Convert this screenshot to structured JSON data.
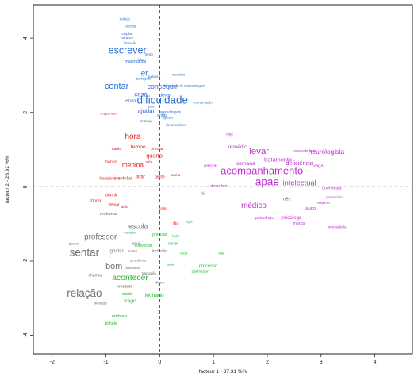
{
  "chart_data": {
    "type": "scatter",
    "title": "",
    "xlabel": "facteur 1 - 37.31 %%",
    "ylabel": "facteur 2 - 26.92 %%",
    "xlim": [
      -2.35,
      4.7
    ],
    "ylim": [
      -4.5,
      4.9
    ],
    "x_ticks": [
      -2,
      -1,
      0,
      1,
      2,
      3,
      4
    ],
    "y_ticks": [
      -4,
      -2,
      0,
      2,
      4
    ],
    "grid": false,
    "legend": "none",
    "reference_lines": {
      "x": 0,
      "y": 0,
      "style": "dashed"
    },
    "series": [
      {
        "color": "#2a6fd0",
        "points": [
          {
            "x": -0.6,
            "y": 3.65,
            "label": "escrever",
            "size": 2.4
          },
          {
            "x": -0.8,
            "y": 2.7,
            "label": "contar",
            "size": 2.1
          },
          {
            "x": -0.3,
            "y": 3.05,
            "label": "ler",
            "size": 1.9
          },
          {
            "x": -0.55,
            "y": 2.35,
            "label": "leitura",
            "size": 1.0
          },
          {
            "x": -0.45,
            "y": 3.4,
            "label": "matemática",
            "size": 1.0
          },
          {
            "x": -0.6,
            "y": 4.15,
            "label": "copiar",
            "size": 1.0
          },
          {
            "x": -0.55,
            "y": 4.35,
            "label": "escrita",
            "size": 0.9
          },
          {
            "x": -0.6,
            "y": 4.05,
            "label": "alcance",
            "size": 0.8
          },
          {
            "x": -0.55,
            "y": 3.9,
            "label": "limitação",
            "size": 0.8
          },
          {
            "x": -0.65,
            "y": 4.55,
            "label": "isolado",
            "size": 0.8
          },
          {
            "x": -0.2,
            "y": 3.6,
            "label": "lento",
            "size": 0.9
          },
          {
            "x": -0.35,
            "y": 3.45,
            "label": "lidar",
            "size": 0.8
          },
          {
            "x": -0.1,
            "y": 3.0,
            "label": "palavra",
            "size": 0.9
          },
          {
            "x": -0.3,
            "y": 2.95,
            "label": "português",
            "size": 0.8
          },
          {
            "x": -0.35,
            "y": 2.5,
            "label": "casa",
            "size": 1.5
          },
          {
            "x": -0.25,
            "y": 2.05,
            "label": "ajudar",
            "size": 1.5
          },
          {
            "x": 0.05,
            "y": 2.3,
            "label": "dificuldade",
            "size": 2.6
          },
          {
            "x": 0.05,
            "y": 2.7,
            "label": "conseguir",
            "size": 1.7
          },
          {
            "x": -0.15,
            "y": 2.2,
            "label": "tuim",
            "size": 0.9
          },
          {
            "x": 0.1,
            "y": 2.5,
            "label": "dever",
            "size": 1.1
          },
          {
            "x": 0.05,
            "y": 1.95,
            "label": "então",
            "size": 1.0
          },
          {
            "x": 0.3,
            "y": 1.7,
            "label": "desenvolver",
            "size": 0.9
          },
          {
            "x": 0.2,
            "y": 2.05,
            "label": "aprendizagem",
            "size": 0.8
          },
          {
            "x": 0.35,
            "y": 3.05,
            "label": "memória",
            "size": 0.8
          },
          {
            "x": 0.45,
            "y": 2.75,
            "label": "dificuldade de aprendizagem",
            "size": 0.8
          },
          {
            "x": 0.8,
            "y": 2.3,
            "label": "coordenação",
            "size": 0.8
          },
          {
            "x": -0.25,
            "y": 1.8,
            "label": "criança",
            "size": 0.9
          },
          {
            "x": 0.15,
            "y": 1.9,
            "label": "agitado",
            "size": 0.8
          }
        ]
      },
      {
        "color": "#e02020",
        "points": [
          {
            "x": -0.5,
            "y": 1.35,
            "label": "hora",
            "size": 1.9
          },
          {
            "x": -0.4,
            "y": 1.1,
            "label": "tempo",
            "size": 1.3
          },
          {
            "x": -0.5,
            "y": 0.6,
            "label": "menina",
            "size": 1.6
          },
          {
            "x": -0.1,
            "y": 0.85,
            "label": "quarto",
            "size": 1.4
          },
          {
            "x": -0.7,
            "y": 0.25,
            "label": "televisão",
            "size": 1.2
          },
          {
            "x": -0.35,
            "y": 0.3,
            "label": "tirar",
            "size": 1.2
          },
          {
            "x": 0.0,
            "y": 0.3,
            "label": "gente",
            "size": 1.0
          },
          {
            "x": -0.05,
            "y": 1.05,
            "label": "brincar",
            "size": 1.0
          },
          {
            "x": -0.8,
            "y": 1.05,
            "label": "canto",
            "size": 1.0
          },
          {
            "x": -0.9,
            "y": 0.7,
            "label": "banho",
            "size": 1.0
          },
          {
            "x": -1.0,
            "y": 0.25,
            "label": "horário",
            "size": 1.0
          },
          {
            "x": -0.9,
            "y": -0.2,
            "label": "dormir",
            "size": 1.0
          },
          {
            "x": -0.65,
            "y": -0.5,
            "label": "aula",
            "size": 1.0
          },
          {
            "x": -0.85,
            "y": -0.45,
            "label": "deixar",
            "size": 1.0
          },
          {
            "x": -1.2,
            "y": -0.35,
            "label": "chorar",
            "size": 1.0
          },
          {
            "x": 0.3,
            "y": -0.95,
            "label": "dia",
            "size": 1.0
          },
          {
            "x": 0.05,
            "y": -0.55,
            "label": "noite",
            "size": 0.9
          },
          {
            "x": 0.3,
            "y": 0.35,
            "label": "cama",
            "size": 0.9
          },
          {
            "x": -0.2,
            "y": 0.7,
            "label": "sala",
            "size": 0.9
          },
          {
            "x": -0.95,
            "y": 2.0,
            "label": "responder",
            "size": 0.9
          }
        ]
      },
      {
        "color": "#707070",
        "points": [
          {
            "x": -1.4,
            "y": -1.8,
            "label": "sentar",
            "size": 2.6
          },
          {
            "x": -1.4,
            "y": -2.9,
            "label": "relação",
            "size": 2.6
          },
          {
            "x": -0.85,
            "y": -2.15,
            "label": "bom",
            "size": 2.1
          },
          {
            "x": -1.1,
            "y": -1.35,
            "label": "professor",
            "size": 1.9
          },
          {
            "x": -0.4,
            "y": -1.05,
            "label": "escola",
            "size": 1.6
          },
          {
            "x": -0.8,
            "y": -1.7,
            "label": "gostar",
            "size": 1.2
          },
          {
            "x": -0.95,
            "y": -0.7,
            "label": "reclamar",
            "size": 1.1
          },
          {
            "x": -0.45,
            "y": -1.5,
            "label": "aqui",
            "size": 1.1
          },
          {
            "x": -0.65,
            "y": -2.65,
            "label": "presente",
            "size": 1.0
          },
          {
            "x": -1.2,
            "y": -2.35,
            "label": "chamar",
            "size": 1.0
          },
          {
            "x": -1.1,
            "y": -3.1,
            "label": "incluído",
            "size": 0.9
          },
          {
            "x": 0.0,
            "y": -1.7,
            "label": "inclusão",
            "size": 1.0
          },
          {
            "x": -0.4,
            "y": -1.95,
            "label": "problema",
            "size": 0.9
          },
          {
            "x": -0.5,
            "y": -2.15,
            "label": "bastante",
            "size": 0.9
          },
          {
            "x": -1.6,
            "y": -1.5,
            "label": "prova",
            "size": 0.9
          },
          {
            "x": -0.5,
            "y": -1.7,
            "label": "muito",
            "size": 0.9
          },
          {
            "x": 0.0,
            "y": -2.55,
            "label": "ótimo",
            "size": 0.9
          },
          {
            "x": -0.2,
            "y": -2.3,
            "label": "tranquilo",
            "size": 0.9
          }
        ]
      },
      {
        "color": "#22bb33",
        "points": [
          {
            "x": -0.55,
            "y": -2.45,
            "label": "acontecer",
            "size": 2.0
          },
          {
            "x": -0.1,
            "y": -2.9,
            "label": "fechado",
            "size": 1.3
          },
          {
            "x": -0.55,
            "y": -3.05,
            "label": "trago",
            "size": 1.3
          },
          {
            "x": -0.75,
            "y": -3.45,
            "label": "embora",
            "size": 1.1
          },
          {
            "x": -0.9,
            "y": -3.65,
            "label": "bilhete",
            "size": 1.0
          },
          {
            "x": -0.6,
            "y": -2.85,
            "label": "citado",
            "size": 1.0
          },
          {
            "x": 0.9,
            "y": -2.1,
            "label": "processo",
            "size": 1.1
          },
          {
            "x": 0.75,
            "y": -2.25,
            "label": "participar",
            "size": 1.0
          },
          {
            "x": -0.3,
            "y": -1.55,
            "label": "conversar",
            "size": 1.0
          },
          {
            "x": 0.0,
            "y": -1.25,
            "label": "precisar",
            "size": 1.0
          },
          {
            "x": 0.2,
            "y": -2.05,
            "label": "sala",
            "size": 0.9
          },
          {
            "x": -0.55,
            "y": -1.2,
            "label": "sempre",
            "size": 0.9
          },
          {
            "x": 0.25,
            "y": -1.5,
            "label": "correr",
            "size": 1.0
          },
          {
            "x": 0.45,
            "y": -1.75,
            "label": "tudo",
            "size": 0.9
          },
          {
            "x": 0.3,
            "y": -1.3,
            "label": "lado",
            "size": 0.9
          },
          {
            "x": 0.55,
            "y": -0.9,
            "label": "ligar",
            "size": 0.9
          },
          {
            "x": 1.15,
            "y": -1.75,
            "label": "aula",
            "size": 0.8
          }
        ]
      },
      {
        "color": "#bb33cc",
        "points": [
          {
            "x": 1.85,
            "y": 0.95,
            "label": "levar",
            "size": 2.2
          },
          {
            "x": 1.9,
            "y": 0.4,
            "label": "acompanhamento",
            "size": 2.5
          },
          {
            "x": 2.0,
            "y": 0.1,
            "label": "apae",
            "size": 2.6
          },
          {
            "x": 1.75,
            "y": -0.5,
            "label": "médico",
            "size": 1.9
          },
          {
            "x": 2.6,
            "y": 0.1,
            "label": "intelectual",
            "size": 1.8
          },
          {
            "x": 3.1,
            "y": 0.95,
            "label": "neurologista",
            "size": 1.6
          },
          {
            "x": 2.2,
            "y": 0.75,
            "label": "tratamento",
            "size": 1.4
          },
          {
            "x": 2.6,
            "y": 0.65,
            "label": "deficiência",
            "size": 1.4
          },
          {
            "x": 1.6,
            "y": 0.65,
            "label": "semana",
            "size": 1.3
          },
          {
            "x": 1.45,
            "y": 1.1,
            "label": "remédio",
            "size": 1.3
          },
          {
            "x": 2.45,
            "y": -0.8,
            "label": "psicóloga",
            "size": 1.2
          },
          {
            "x": 1.95,
            "y": -0.8,
            "label": "psicologo",
            "size": 1.1
          },
          {
            "x": 2.35,
            "y": -0.3,
            "label": "mês",
            "size": 1.2
          },
          {
            "x": 3.05,
            "y": -0.4,
            "label": "exame",
            "size": 1.0
          },
          {
            "x": 3.25,
            "y": -0.25,
            "label": "patrocínio",
            "size": 0.9
          },
          {
            "x": 2.8,
            "y": -0.55,
            "label": "laudo",
            "size": 1.1
          },
          {
            "x": 2.7,
            "y": 1.0,
            "label": "fonoaudiologia",
            "size": 0.9
          },
          {
            "x": 0.95,
            "y": 0.6,
            "label": "passar",
            "size": 1.1
          },
          {
            "x": 1.1,
            "y": 0.05,
            "label": "descobrir",
            "size": 1.0
          },
          {
            "x": 0.8,
            "y": -0.15,
            "label": "lá",
            "size": 1.0
          },
          {
            "x": 2.95,
            "y": 0.6,
            "label": "vaga",
            "size": 1.1
          },
          {
            "x": 3.2,
            "y": 0.0,
            "label": "uberlândia",
            "size": 1.0
          },
          {
            "x": 2.6,
            "y": -0.95,
            "label": "marcar",
            "size": 1.0
          },
          {
            "x": 3.3,
            "y": -1.05,
            "label": "mentalbelo",
            "size": 0.9
          },
          {
            "x": 1.3,
            "y": 1.45,
            "label": "hoje",
            "size": 0.9
          }
        ]
      }
    ]
  }
}
